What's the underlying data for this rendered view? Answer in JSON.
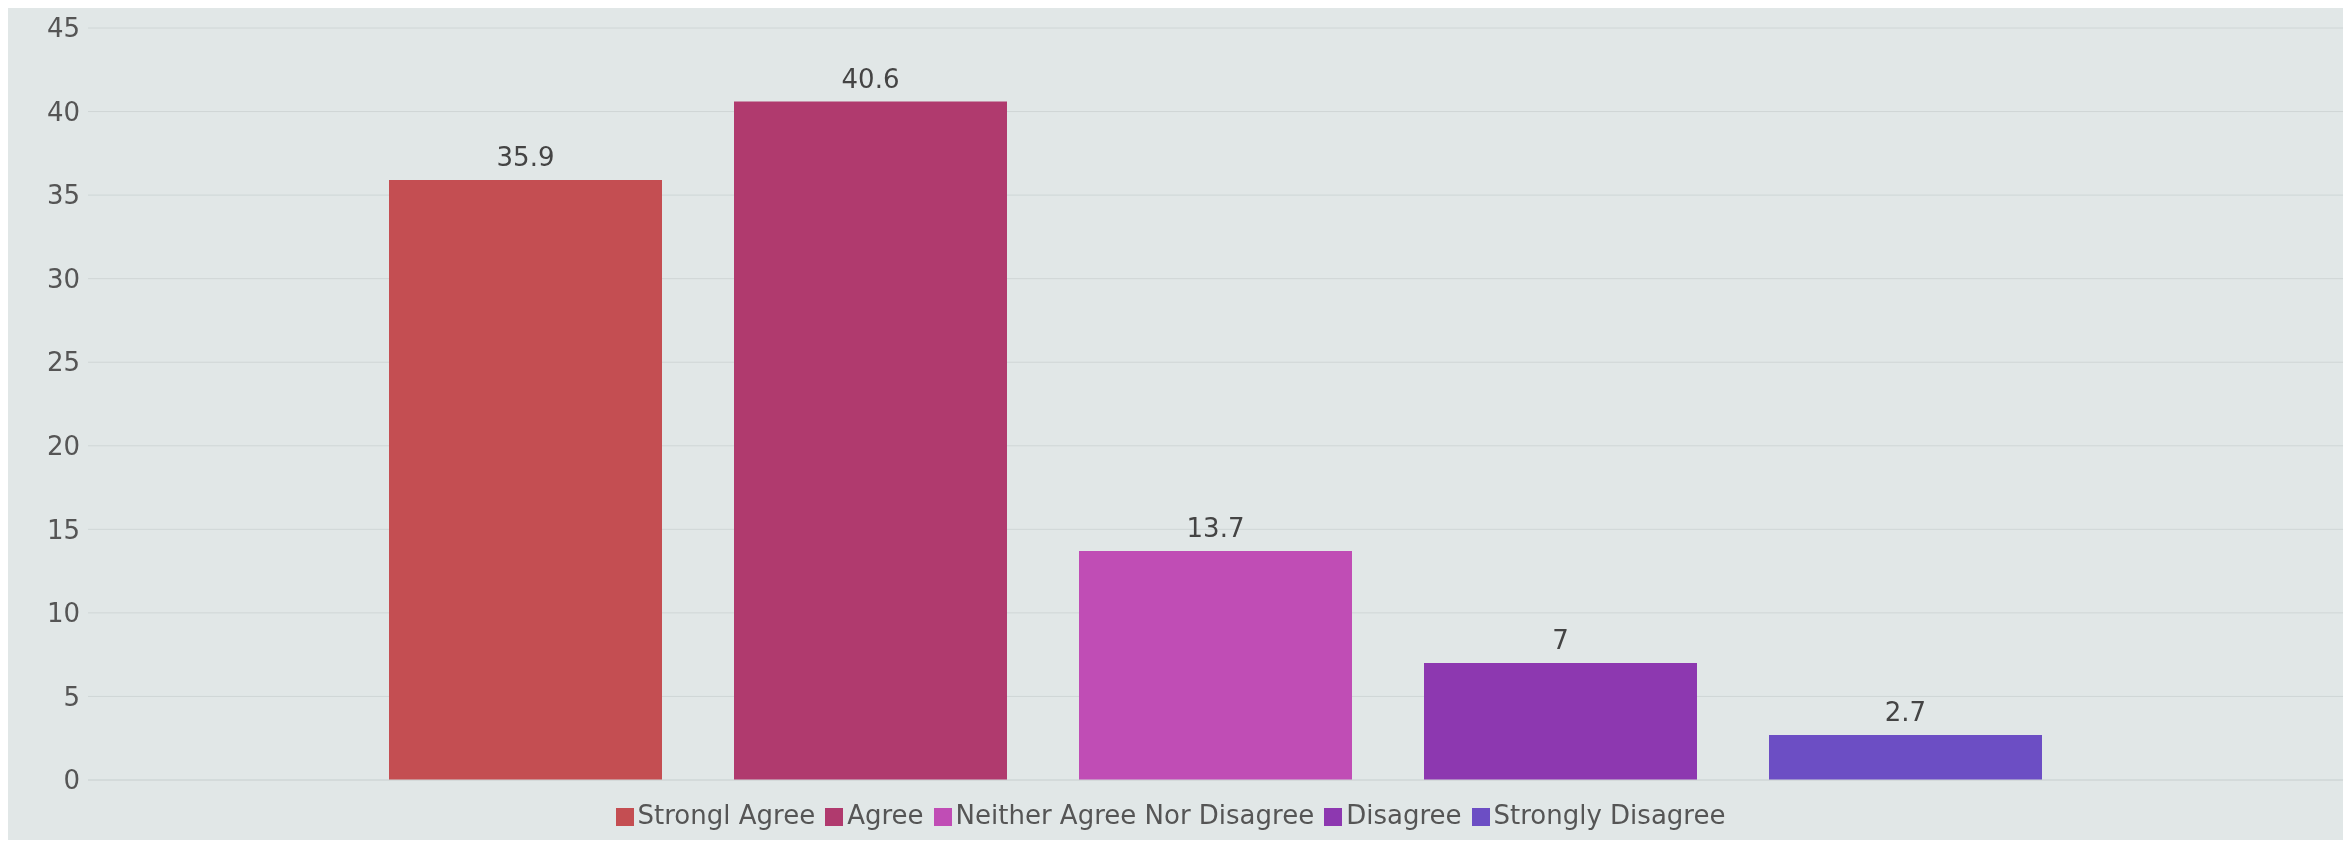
{
  "chart_data": {
    "type": "bar",
    "categories": [
      null
    ],
    "series": [
      {
        "name": "Strongl Agree",
        "color": "#c44e52",
        "values": [
          35.9
        ]
      },
      {
        "name": "Agree",
        "color": "#b03a6e",
        "values": [
          40.6
        ]
      },
      {
        "name": "Neither Agree Nor Disagree",
        "color": "#c04db5",
        "values": [
          13.7
        ]
      },
      {
        "name": "Disagree",
        "color": "#8d38b0",
        "values": [
          7
        ]
      },
      {
        "name": "Strongly Disagree",
        "color": "#6c4ec4",
        "values": [
          2.7
        ]
      }
    ],
    "ylim": [
      0,
      45
    ],
    "yticks": [
      0,
      5,
      10,
      15,
      20,
      25,
      30,
      35,
      40,
      45
    ],
    "grid": "y",
    "legend": "bottom",
    "data_labels": true
  }
}
